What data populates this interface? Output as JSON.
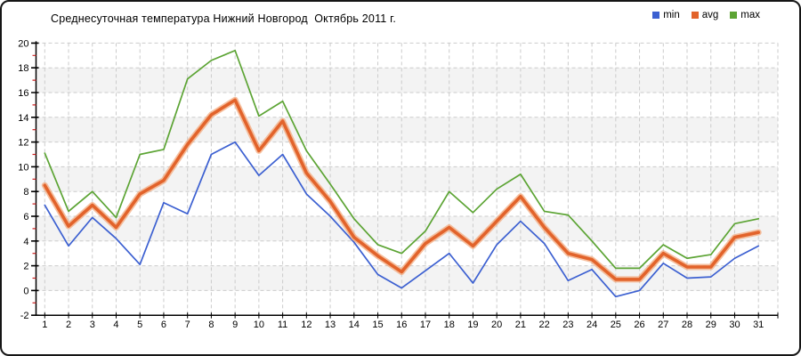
{
  "window": {
    "background": "#ffffff",
    "border_color": "#151515"
  },
  "chart_data": {
    "type": "line",
    "title": "Среднесуточная температура Нижний Новгород  Октябрь 2011 г.",
    "xlabel": "",
    "ylabel": "",
    "x_unit": "day of month (October 2011)",
    "y_unit": "°C",
    "categories": [
      1,
      2,
      3,
      4,
      5,
      6,
      7,
      8,
      9,
      10,
      11,
      12,
      13,
      14,
      15,
      16,
      17,
      18,
      19,
      20,
      21,
      22,
      23,
      24,
      25,
      26,
      27,
      28,
      29,
      30,
      31
    ],
    "series": [
      {
        "name": "min",
        "color": "#3c60d1",
        "width": 1.7,
        "values": [
          6.9,
          3.6,
          5.9,
          4.2,
          2.1,
          7.1,
          6.2,
          11.0,
          12.0,
          9.3,
          11.0,
          7.8,
          6.0,
          3.9,
          1.3,
          0.2,
          1.6,
          3.0,
          0.6,
          3.7,
          5.6,
          3.8,
          0.8,
          1.7,
          -0.5,
          0.0,
          2.2,
          1.0,
          1.1,
          2.6,
          3.6
        ]
      },
      {
        "name": "avg",
        "color": "#e2632b",
        "halo_color": "#f3a97e",
        "width": 3.6,
        "values": [
          8.5,
          5.2,
          6.9,
          5.1,
          7.8,
          8.9,
          11.8,
          14.2,
          15.4,
          11.3,
          13.7,
          9.5,
          7.2,
          4.3,
          2.8,
          1.5,
          3.8,
          5.1,
          3.6,
          5.6,
          7.6,
          5.1,
          3.0,
          2.5,
          0.9,
          0.9,
          3.0,
          1.9,
          1.9,
          4.3,
          4.7
        ]
      },
      {
        "name": "max",
        "color": "#5ca434",
        "width": 1.7,
        "values": [
          11.1,
          6.4,
          8.0,
          5.9,
          11.0,
          11.4,
          17.1,
          18.6,
          19.4,
          14.1,
          15.3,
          11.3,
          8.6,
          5.8,
          3.7,
          3.0,
          4.8,
          8.0,
          6.3,
          8.2,
          9.4,
          6.4,
          6.1,
          4.0,
          1.8,
          1.8,
          3.7,
          2.6,
          2.9,
          5.4,
          5.8
        ]
      }
    ],
    "ylim": [
      -2,
      20
    ],
    "ytick_step": 2,
    "grid": true,
    "grid_color": "#cbcbcb",
    "band_color": "#f3f3f3",
    "axis_color": "#000000",
    "minor_tick_color": "#cc2222",
    "legend_position": "top-right"
  }
}
